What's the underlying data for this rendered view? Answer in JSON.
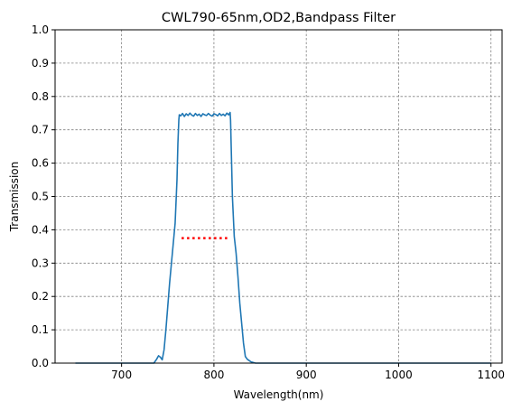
{
  "chart_data": {
    "type": "line",
    "title": "CWL790-65nm,OD2,Bandpass Filter",
    "xlabel": "Wavelength(nm)",
    "ylabel": "Transmission",
    "xlim": [
      628,
      1112
    ],
    "ylim": [
      0,
      1
    ],
    "x_ticks": [
      700,
      800,
      900,
      1000,
      1100
    ],
    "x_tick_labels": [
      "700",
      "800",
      "900",
      "1000",
      "1100"
    ],
    "y_ticks": [
      0,
      0.1,
      0.2,
      0.3,
      0.4,
      0.5,
      0.6,
      0.7,
      0.8,
      0.9,
      1
    ],
    "y_tick_labels": [
      "0.0",
      "0.1",
      "0.2",
      "0.3",
      "0.4",
      "0.5",
      "0.6",
      "0.7",
      "0.8",
      "0.9",
      "1.0"
    ],
    "grid": true,
    "series": [
      {
        "color": "#1f77b4",
        "x": [
          650,
          700,
          735,
          738,
          740,
          742,
          744,
          746,
          748,
          750,
          752,
          754,
          756,
          758,
          760,
          761,
          762,
          762.5,
          764,
          766,
          768,
          770,
          772,
          774,
          776,
          778,
          780,
          782,
          784,
          786,
          788,
          790,
          792,
          794,
          796,
          798,
          800,
          802,
          804,
          806,
          808,
          810,
          812,
          814,
          816,
          817.5,
          818,
          820,
          822,
          824,
          826,
          828,
          830,
          832,
          834,
          836,
          838,
          840,
          845,
          900,
          1000,
          1100
        ],
        "y": [
          0.0,
          0.0,
          0.0,
          0.012,
          0.022,
          0.018,
          0.01,
          0.04,
          0.1,
          0.17,
          0.24,
          0.3,
          0.36,
          0.42,
          0.55,
          0.66,
          0.73,
          0.745,
          0.742,
          0.749,
          0.74,
          0.748,
          0.743,
          0.75,
          0.744,
          0.741,
          0.749,
          0.743,
          0.747,
          0.74,
          0.748,
          0.745,
          0.743,
          0.749,
          0.744,
          0.741,
          0.748,
          0.746,
          0.742,
          0.749,
          0.743,
          0.747,
          0.742,
          0.75,
          0.745,
          0.752,
          0.73,
          0.5,
          0.38,
          0.33,
          0.26,
          0.18,
          0.12,
          0.06,
          0.02,
          0.012,
          0.008,
          0.004,
          0.0,
          0.0,
          0.0,
          0.0
        ]
      },
      {
        "color": "#ff0000",
        "style": "dotted",
        "x": [
          765,
          817
        ],
        "y": [
          0.375,
          0.375
        ]
      }
    ]
  }
}
